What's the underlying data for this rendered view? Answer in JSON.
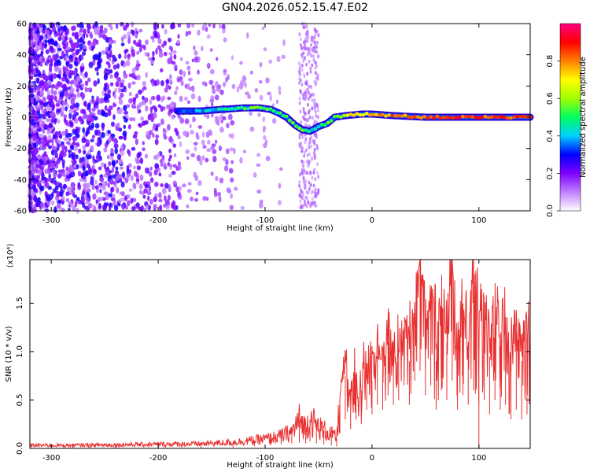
{
  "chart_data": [
    {
      "type": "heatmap",
      "title": "GN04.2026.052.15.47.E02",
      "xlabel": "Height of straight line (km)",
      "ylabel": "Frequency (Hz)",
      "xlim": [
        -320,
        148
      ],
      "ylim": [
        -60,
        60
      ],
      "xticks": [
        -300,
        -200,
        -100,
        0,
        100
      ],
      "yticks": [
        -60,
        -40,
        -20,
        0,
        20,
        40,
        60
      ],
      "colorbar": {
        "label": "Normalized spectral amplitude",
        "range": [
          0,
          1
        ],
        "ticks": [
          "0.0",
          "0.2",
          "0.4",
          "0.6",
          "0.8"
        ],
        "tick_values": [
          0.0,
          0.2,
          0.4,
          0.6,
          0.8
        ],
        "colors": [
          "#ffffff",
          "#c080ff",
          "#8000ff",
          "#0000ff",
          "#00d0ff",
          "#00ff60",
          "#a0ff00",
          "#ffff00",
          "#ff8000",
          "#ff0000",
          "#ff0080"
        ]
      },
      "signal_track": {
        "x": [
          -182,
          -160,
          -140,
          -120,
          -105,
          -95,
          -88,
          -80,
          -72,
          -65,
          -58,
          -50,
          -42,
          -35,
          -25,
          -10,
          0,
          20,
          50,
          80,
          110,
          148
        ],
        "frequency": [
          4,
          4,
          5,
          6,
          6,
          5,
          3,
          0,
          -5,
          -8,
          -9,
          -6,
          -4,
          0,
          1,
          2,
          2,
          1,
          0,
          0,
          0,
          0
        ],
        "amplitude": [
          0.35,
          0.4,
          0.45,
          0.5,
          0.55,
          0.5,
          0.45,
          0.5,
          0.55,
          0.5,
          0.4,
          0.45,
          0.5,
          0.6,
          0.65,
          0.7,
          0.75,
          0.8,
          0.85,
          0.85,
          0.85,
          0.85
        ]
      },
      "noise_band_vertical_km": [
        -68,
        -50
      ]
    },
    {
      "type": "line",
      "xlabel": "Height of straight line (km)",
      "ylabel": "SNR (10 * v/v)",
      "y_multiplier": "(x10⁴)",
      "xlim": [
        -320,
        148
      ],
      "ylim": [
        0,
        1.95
      ],
      "xticks": [
        -300,
        -200,
        -100,
        0,
        100
      ],
      "yticks": [
        "0.0",
        "0.5",
        "1.0",
        "1.5"
      ],
      "ytick_values": [
        0.0,
        0.5,
        1.0,
        1.5
      ],
      "series": [
        {
          "name": "SNR",
          "color": "#e83030",
          "x": [
            -320,
            -280,
            -240,
            -200,
            -160,
            -130,
            -110,
            -95,
            -85,
            -75,
            -68,
            -62,
            -58,
            -52,
            -45,
            -38,
            -33,
            -30,
            -25,
            -20,
            -15,
            -10,
            -5,
            0,
            5,
            10,
            15,
            20,
            25,
            30,
            35,
            40,
            45,
            50,
            55,
            60,
            65,
            70,
            75,
            80,
            85,
            90,
            95,
            100,
            105,
            110,
            115,
            120,
            125,
            130,
            135,
            140,
            145,
            148
          ],
          "y": [
            0.03,
            0.03,
            0.035,
            0.04,
            0.045,
            0.06,
            0.08,
            0.1,
            0.12,
            0.16,
            0.28,
            0.2,
            0.3,
            0.22,
            0.18,
            0.14,
            0.1,
            0.45,
            0.75,
            0.55,
            0.65,
            0.6,
            0.85,
            0.7,
            0.95,
            0.8,
            1.1,
            0.85,
            0.95,
            1.25,
            0.9,
            1.5,
            1.95,
            1.2,
            1.5,
            0.9,
            1.35,
            1.1,
            1.95,
            0.95,
            1.4,
            1.1,
            1.95,
            1.2,
            1.45,
            0.95,
            1.3,
            1.05,
            1.25,
            0.85,
            1.2,
            0.9,
            1.1,
            1.25
          ],
          "envelope_max": [
            0.05,
            0.06,
            0.07,
            0.08,
            0.09,
            0.1,
            0.12,
            0.14,
            0.18,
            0.26,
            0.33,
            0.28,
            0.36,
            0.3,
            0.24,
            0.2,
            0.16,
            0.7,
            1.05,
            0.9,
            1.0,
            0.95,
            1.15,
            1.05,
            1.25,
            1.2,
            1.45,
            1.25,
            1.35,
            1.6,
            1.4,
            1.75,
            1.95,
            1.7,
            1.8,
            1.55,
            1.75,
            1.6,
            1.95,
            1.5,
            1.8,
            1.55,
            1.95,
            1.65,
            1.8,
            1.45,
            1.7,
            1.5,
            1.65,
            1.3,
            1.6,
            1.35,
            1.5,
            1.45
          ],
          "envelope_min": [
            0.0,
            0.0,
            0.0,
            0.0,
            0.0,
            0.01,
            0.02,
            0.03,
            0.04,
            0.05,
            0.06,
            0.05,
            0.07,
            0.05,
            0.04,
            0.03,
            0.02,
            0.15,
            0.3,
            0.2,
            0.3,
            0.25,
            0.4,
            0.35,
            0.45,
            0.4,
            0.55,
            0.45,
            0.5,
            0.65,
            0.45,
            0.7,
            0.8,
            0.55,
            0.65,
            0.4,
            0.6,
            0.5,
            0.7,
            0.4,
            0.55,
            0.45,
            0.6,
            0.0,
            0.5,
            0.35,
            0.5,
            0.4,
            0.45,
            0.3,
            0.4,
            0.3,
            0.35,
            0.4
          ]
        }
      ]
    }
  ]
}
